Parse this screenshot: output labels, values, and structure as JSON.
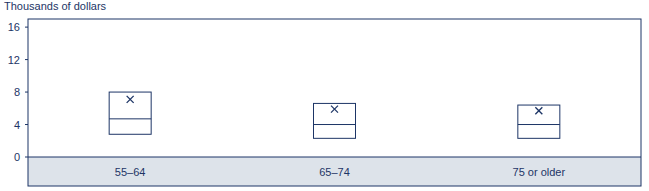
{
  "chart_data": {
    "type": "box",
    "y_label": "Thousands of dollars",
    "categories": [
      "55–64",
      "65–74",
      "75 or older"
    ],
    "q1": [
      2.8,
      2.3,
      2.3
    ],
    "median": [
      4.7,
      4.0,
      4.0
    ],
    "q3": [
      8.0,
      6.6,
      6.4
    ],
    "mean": [
      7.1,
      5.9,
      5.7
    ],
    "marker": "x",
    "color": "#1d3566",
    "ylim": [
      0,
      17
    ],
    "yticks": [
      0,
      4,
      8,
      12,
      16
    ],
    "grid": false
  }
}
